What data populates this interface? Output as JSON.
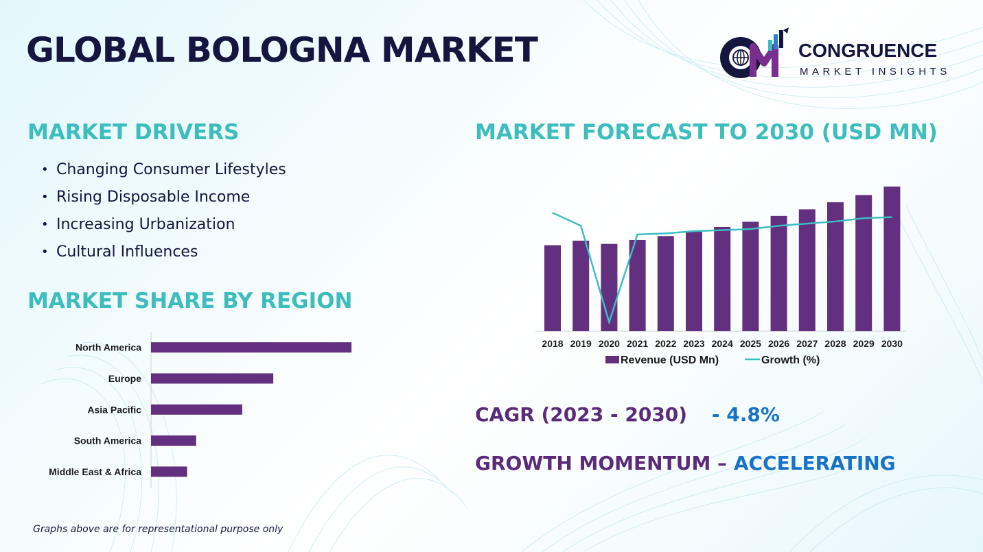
{
  "title": "GLOBAL BOLOGNA MARKET",
  "logo": {
    "name": "CONGRUENCE",
    "tagline": "MARKET INSIGHTS"
  },
  "drivers": {
    "heading": "MARKET DRIVERS",
    "items": [
      "Changing Consumer Lifestyles",
      "Rising Disposable Income",
      "Increasing Urbanization",
      "Cultural Influences"
    ]
  },
  "region": {
    "heading": "MARKET SHARE BY REGION"
  },
  "forecast": {
    "heading": "MARKET FORECAST TO 2030 (USD MN)"
  },
  "cagr": {
    "label": "CAGR (2023 - 2030)",
    "value": "- 4.8%"
  },
  "momentum": {
    "label": "GROWTH MOMENTUM –",
    "value": "ACCELERATING"
  },
  "footnote": "Graphs above are for representational purpose only",
  "colors": {
    "title": "#14163f",
    "heading": "#3dbdbd",
    "bar": "#62307e",
    "line": "#3dbdc4",
    "accent_blue": "#1873c8",
    "accent_purple": "#5b2b79"
  },
  "chart_data": [
    {
      "type": "bar",
      "orientation": "horizontal",
      "categories": [
        "North America",
        "Europe",
        "Asia Pacific",
        "South America",
        "Middle East & Africa"
      ],
      "values": [
        100,
        61,
        45.5,
        22.5,
        18
      ],
      "grid": false
    },
    {
      "type": "bar",
      "x": [
        "2018",
        "2019",
        "2020",
        "2021",
        "2022",
        "2023",
        "2024",
        "2025",
        "2026",
        "2027",
        "2028",
        "2029",
        "2030"
      ],
      "series": [
        {
          "name": "Revenue (USD Mn)",
          "type": "bar",
          "values": [
            132,
            139,
            134,
            140,
            146,
            153,
            160,
            168,
            177,
            187,
            198,
            209,
            222
          ]
        },
        {
          "name": "Growth (%)",
          "type": "line",
          "values": [
            6.5,
            5.3,
            -3.6,
            4.5,
            4.6,
            4.8,
            4.9,
            5.0,
            5.3,
            5.5,
            5.7,
            6.0,
            6.1
          ]
        }
      ],
      "legend": "bottom",
      "grid": false
    }
  ]
}
